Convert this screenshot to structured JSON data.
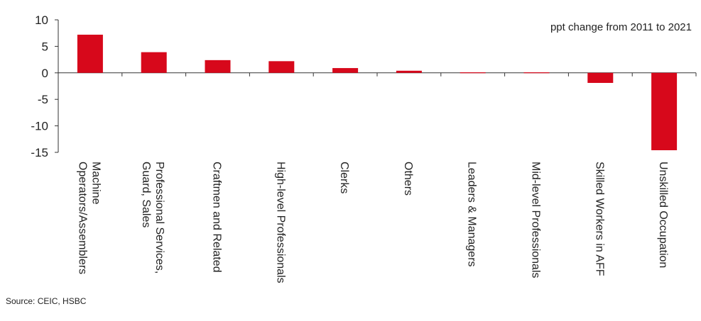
{
  "chart_data": {
    "type": "bar",
    "note": "ppt change from 2011 to 2021",
    "categories": [
      [
        "Machine",
        "Operators/Assemblers"
      ],
      [
        "Professional Services,",
        "Guard, Sales"
      ],
      [
        "Craftmen and Related"
      ],
      [
        "High-level Professionals"
      ],
      [
        "Clerks"
      ],
      [
        "Others"
      ],
      [
        "Leaders & Managers"
      ],
      [
        "Mid-level Professionals"
      ],
      [
        "Skilled Workers in AFF"
      ],
      [
        "Unskilled Occupation"
      ]
    ],
    "values": [
      7.2,
      3.9,
      2.4,
      2.2,
      0.9,
      0.4,
      0.1,
      0.1,
      -1.9,
      -14.6
    ],
    "ylim": [
      -15,
      10
    ],
    "yticks": [
      10,
      5,
      0,
      -5,
      -10,
      -15
    ],
    "grid": false,
    "bar_color": "#d7081b"
  },
  "source": "Source: CEIC, HSBC"
}
